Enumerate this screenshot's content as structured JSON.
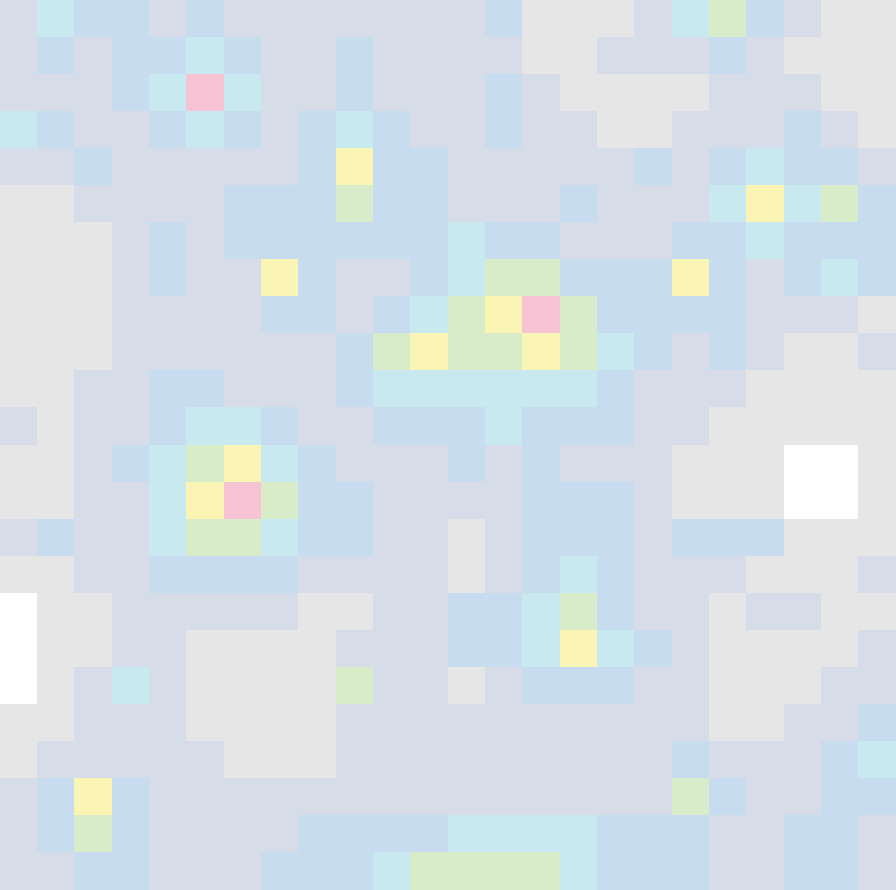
{
  "chart_data": {
    "type": "heatmap",
    "grid": false,
    "tick_labels": false,
    "cells": [
      [
        2,
        4,
        3,
        3,
        2,
        3,
        2,
        2,
        2,
        2,
        2,
        2,
        2,
        3,
        1,
        1,
        1,
        2,
        4,
        5,
        3,
        2,
        1,
        1
      ],
      [
        2,
        3,
        2,
        3,
        3,
        4,
        3,
        2,
        2,
        3,
        2,
        2,
        2,
        2,
        1,
        1,
        2,
        2,
        2,
        3,
        2,
        1,
        1,
        1
      ],
      [
        2,
        2,
        2,
        3,
        4,
        7,
        4,
        2,
        2,
        3,
        2,
        2,
        2,
        3,
        2,
        1,
        1,
        1,
        1,
        2,
        2,
        2,
        1,
        1
      ],
      [
        4,
        3,
        2,
        2,
        3,
        4,
        3,
        2,
        3,
        4,
        3,
        2,
        2,
        3,
        2,
        2,
        1,
        1,
        2,
        2,
        2,
        3,
        2,
        1
      ],
      [
        2,
        2,
        3,
        2,
        2,
        2,
        2,
        2,
        3,
        6,
        3,
        3,
        2,
        2,
        2,
        2,
        2,
        3,
        2,
        3,
        4,
        3,
        3,
        2
      ],
      [
        1,
        1,
        2,
        2,
        2,
        2,
        3,
        3,
        3,
        5,
        3,
        3,
        2,
        2,
        2,
        3,
        2,
        2,
        2,
        4,
        6,
        4,
        5,
        3
      ],
      [
        1,
        1,
        1,
        2,
        3,
        2,
        3,
        3,
        3,
        3,
        3,
        3,
        4,
        3,
        3,
        2,
        2,
        2,
        3,
        3,
        4,
        3,
        3,
        3
      ],
      [
        1,
        1,
        1,
        2,
        3,
        2,
        2,
        6,
        3,
        2,
        2,
        3,
        4,
        5,
        5,
        3,
        3,
        3,
        6,
        3,
        2,
        3,
        4,
        3
      ],
      [
        1,
        1,
        1,
        2,
        2,
        2,
        2,
        3,
        3,
        2,
        3,
        4,
        5,
        6,
        7,
        5,
        3,
        3,
        3,
        3,
        2,
        2,
        2,
        1
      ],
      [
        1,
        1,
        1,
        2,
        2,
        2,
        2,
        2,
        2,
        3,
        5,
        6,
        5,
        5,
        6,
        5,
        4,
        3,
        2,
        3,
        2,
        1,
        1,
        2
      ],
      [
        1,
        1,
        2,
        2,
        3,
        3,
        2,
        2,
        2,
        3,
        4,
        4,
        4,
        4,
        4,
        4,
        3,
        2,
        2,
        2,
        1,
        1,
        1,
        1
      ],
      [
        2,
        1,
        2,
        2,
        3,
        4,
        4,
        3,
        2,
        2,
        3,
        3,
        3,
        4,
        3,
        3,
        3,
        2,
        2,
        1,
        1,
        1,
        1,
        1
      ],
      [
        1,
        1,
        2,
        3,
        4,
        5,
        6,
        4,
        3,
        2,
        2,
        2,
        3,
        2,
        3,
        2,
        2,
        2,
        1,
        1,
        1,
        0,
        0,
        1
      ],
      [
        1,
        1,
        2,
        2,
        4,
        6,
        7,
        5,
        3,
        3,
        2,
        2,
        2,
        2,
        3,
        3,
        3,
        2,
        1,
        1,
        1,
        0,
        0,
        1
      ],
      [
        2,
        3,
        2,
        2,
        4,
        5,
        5,
        4,
        3,
        3,
        2,
        2,
        1,
        2,
        3,
        3,
        3,
        2,
        3,
        3,
        3,
        1,
        1,
        1
      ],
      [
        1,
        1,
        2,
        2,
        3,
        3,
        3,
        3,
        2,
        2,
        2,
        2,
        1,
        2,
        3,
        4,
        3,
        2,
        2,
        2,
        1,
        1,
        1,
        2
      ],
      [
        0,
        1,
        1,
        2,
        2,
        2,
        2,
        2,
        1,
        1,
        2,
        2,
        3,
        3,
        4,
        5,
        3,
        2,
        2,
        1,
        2,
        2,
        1,
        1
      ],
      [
        0,
        1,
        1,
        2,
        2,
        1,
        1,
        1,
        1,
        2,
        2,
        2,
        3,
        3,
        4,
        6,
        4,
        3,
        2,
        1,
        1,
        1,
        1,
        2
      ],
      [
        0,
        1,
        2,
        4,
        2,
        1,
        1,
        1,
        1,
        5,
        2,
        2,
        1,
        2,
        3,
        3,
        3,
        2,
        2,
        1,
        1,
        1,
        2,
        2
      ],
      [
        1,
        1,
        2,
        2,
        2,
        1,
        1,
        1,
        1,
        2,
        2,
        2,
        2,
        2,
        2,
        2,
        2,
        2,
        2,
        1,
        1,
        2,
        2,
        3
      ],
      [
        1,
        2,
        2,
        2,
        2,
        2,
        1,
        1,
        1,
        2,
        2,
        2,
        2,
        2,
        2,
        2,
        2,
        2,
        3,
        2,
        2,
        2,
        3,
        4
      ],
      [
        2,
        3,
        6,
        3,
        2,
        2,
        2,
        2,
        2,
        2,
        2,
        2,
        2,
        2,
        2,
        2,
        2,
        2,
        5,
        3,
        2,
        2,
        3,
        3
      ],
      [
        2,
        3,
        5,
        3,
        2,
        2,
        2,
        2,
        3,
        3,
        3,
        3,
        4,
        4,
        4,
        4,
        3,
        3,
        3,
        2,
        2,
        3,
        3,
        2
      ],
      [
        2,
        2,
        3,
        3,
        2,
        2,
        2,
        3,
        3,
        3,
        4,
        5,
        5,
        5,
        5,
        4,
        3,
        3,
        3,
        2,
        2,
        3,
        3,
        2
      ]
    ]
  }
}
